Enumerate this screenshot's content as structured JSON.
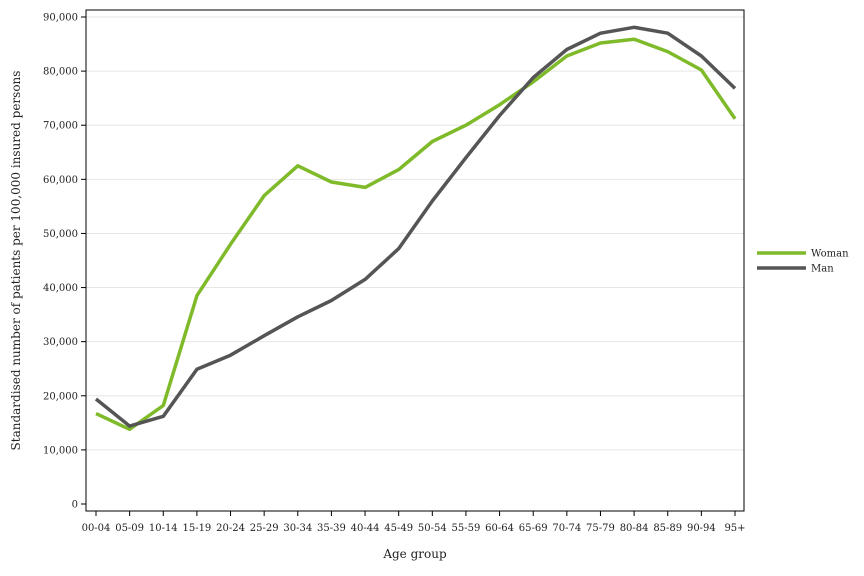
{
  "chart_data": {
    "type": "line",
    "title": "",
    "xlabel": "Age group",
    "ylabel": "Standardised number of patients per 100,000 insured persons",
    "ylim": [
      0,
      90000
    ],
    "yticks": [
      "0",
      "10,000",
      "20,000",
      "30,000",
      "40,000",
      "50,000",
      "60,000",
      "70,000",
      "80,000",
      "90,000"
    ],
    "ytick_values": [
      0,
      10000,
      20000,
      30000,
      40000,
      50000,
      60000,
      70000,
      80000,
      90000
    ],
    "grid": true,
    "legend_position": "right",
    "categories": [
      "00-04",
      "05-09",
      "10-14",
      "15-19",
      "20-24",
      "25-29",
      "30-34",
      "35-39",
      "40-44",
      "45-49",
      "50-54",
      "55-59",
      "60-64",
      "65-69",
      "70-74",
      "75-79",
      "80-84",
      "85-89",
      "90-94",
      "95+"
    ],
    "series": [
      {
        "name": "Woman",
        "color": "#7fba2a",
        "values": [
          16700,
          13800,
          18200,
          38500,
          48000,
          57000,
          62500,
          59500,
          58500,
          61800,
          67000,
          70000,
          73800,
          78000,
          82800,
          85200,
          85900,
          83600,
          80200,
          71200
        ]
      },
      {
        "name": "Man",
        "color": "#555555",
        "values": [
          19400,
          14400,
          16200,
          24900,
          27500,
          31100,
          34600,
          37600,
          41500,
          47200,
          56000,
          64000,
          71800,
          78800,
          84000,
          87000,
          88100,
          87000,
          82800,
          76800
        ]
      }
    ]
  }
}
